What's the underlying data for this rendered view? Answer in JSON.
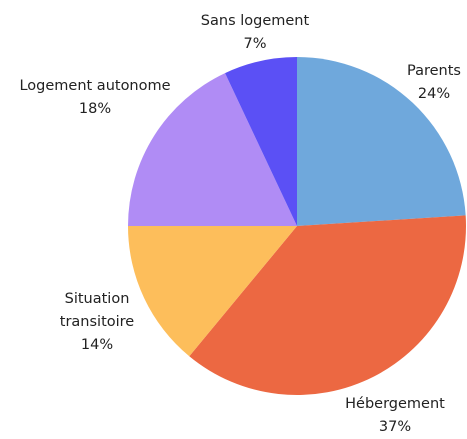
{
  "chart_data": {
    "type": "pie",
    "categories": [
      "Parents",
      "Hébergement",
      "Situation transitoire",
      "Logement autonome",
      "Sans logement"
    ],
    "values": [
      24,
      37,
      14,
      18,
      7
    ],
    "value_labels": [
      "24%",
      "37%",
      "14%",
      "18%",
      "7%"
    ],
    "colors": [
      "#6fa8dc",
      "#ec6842",
      "#fdbe5b",
      "#b08cf5",
      "#5b50f5"
    ]
  }
}
